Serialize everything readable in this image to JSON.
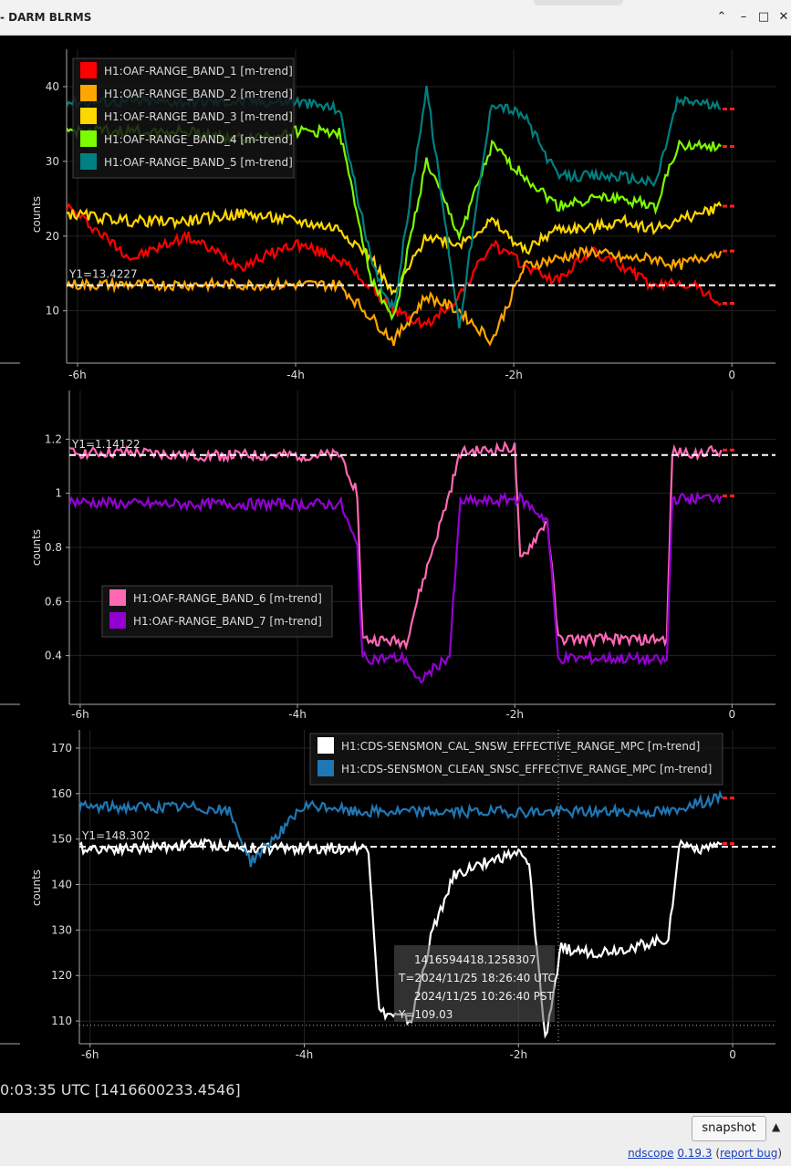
{
  "window": {
    "title": "- DARM BLRMS"
  },
  "x_ticks": [
    "-6h",
    "-4h",
    "-2h",
    "0"
  ],
  "panels": [
    {
      "ylabel": "counts",
      "yticks": [
        "40",
        "30",
        "20",
        "10"
      ],
      "cursor_label": "Y1=13.4227",
      "legend": [
        {
          "name": "H1:OAF-RANGE_BAND_1 [m-trend]",
          "color": "#ff0000"
        },
        {
          "name": "H1:OAF-RANGE_BAND_2 [m-trend]",
          "color": "#ffa500"
        },
        {
          "name": "H1:OAF-RANGE_BAND_3 [m-trend]",
          "color": "#ffd700"
        },
        {
          "name": "H1:OAF-RANGE_BAND_4 [m-trend]",
          "color": "#7cfc00"
        },
        {
          "name": "H1:OAF-RANGE_BAND_5 [m-trend]",
          "color": "#008080"
        }
      ]
    },
    {
      "ylabel": "counts",
      "yticks": [
        "1.2",
        "1",
        "0.8",
        "0.6",
        "0.4"
      ],
      "cursor_label": "Y1=1.14122",
      "legend": [
        {
          "name": "H1:OAF-RANGE_BAND_6 [m-trend]",
          "color": "#ff69b4"
        },
        {
          "name": "H1:OAF-RANGE_BAND_7 [m-trend]",
          "color": "#9400d3"
        }
      ]
    },
    {
      "ylabel": "counts",
      "yticks": [
        "170",
        "160",
        "150",
        "140",
        "130",
        "120",
        "110"
      ],
      "cursor_label": "Y1=148.302",
      "legend": [
        {
          "name": "H1:CDS-SENSMON_CAL_SNSW_EFFECTIVE_RANGE_MPC [m-trend]",
          "color": "#ffffff"
        },
        {
          "name": "H1:CDS-SENSMON_CLEAN_SNSC_EFFECTIVE_RANGE_MPC [m-trend]",
          "color": "#1f77b4"
        }
      ],
      "tooltip": [
        "1416594418.1258307",
        "T=2024/11/25 18:26:40 UTC",
        "2024/11/25 10:26:40 PST",
        "Y=109.03"
      ]
    }
  ],
  "chart_data": [
    {
      "type": "line",
      "x_unit": "hours before now",
      "xlim": [
        -6.1,
        0.4
      ],
      "ylim": [
        3,
        45
      ],
      "ylabel": "counts",
      "cursor_y1": 13.4227,
      "series": [
        {
          "name": "H1:OAF-RANGE_BAND_1 [m-trend]",
          "color": "#ff0000",
          "x": [
            -6.1,
            -5.5,
            -5.0,
            -4.5,
            -4.0,
            -3.6,
            -3.3,
            -3.1,
            -2.8,
            -2.5,
            -2.2,
            -1.9,
            -1.6,
            -1.3,
            -1.0,
            -0.7,
            -0.5,
            -0.3,
            -0.1
          ],
          "y": [
            24,
            17,
            20,
            16,
            19,
            17,
            13,
            10,
            8,
            12,
            19,
            16,
            14,
            18,
            16,
            13,
            14,
            13,
            11
          ]
        },
        {
          "name": "H1:OAF-RANGE_BAND_2 [m-trend]",
          "color": "#ffa500",
          "x": [
            -6.1,
            -5.5,
            -5.0,
            -4.5,
            -4.0,
            -3.6,
            -3.3,
            -3.1,
            -2.8,
            -2.5,
            -2.2,
            -1.9,
            -1.6,
            -1.3,
            -1.0,
            -0.7,
            -0.5,
            -0.3,
            -0.1
          ],
          "y": [
            13.5,
            13.5,
            13.5,
            13.5,
            13.5,
            13.5,
            9,
            6,
            12,
            10,
            6,
            16,
            17,
            18,
            17,
            17,
            16,
            17,
            18
          ]
        },
        {
          "name": "H1:OAF-RANGE_BAND_3 [m-trend]",
          "color": "#ffd700",
          "x": [
            -6.1,
            -5.5,
            -5.0,
            -4.5,
            -4.0,
            -3.6,
            -3.3,
            -3.1,
            -2.8,
            -2.5,
            -2.2,
            -1.9,
            -1.6,
            -1.3,
            -1.0,
            -0.7,
            -0.5,
            -0.3,
            -0.1
          ],
          "y": [
            23,
            22,
            22,
            23,
            22,
            21,
            17,
            12,
            20,
            19,
            22,
            18,
            21,
            21,
            22,
            21,
            22,
            23,
            24
          ]
        },
        {
          "name": "H1:OAF-RANGE_BAND_4 [m-trend]",
          "color": "#7cfc00",
          "x": [
            -6.1,
            -5.5,
            -5.0,
            -4.5,
            -4.0,
            -3.6,
            -3.3,
            -3.1,
            -2.8,
            -2.5,
            -2.2,
            -1.9,
            -1.6,
            -1.3,
            -1.0,
            -0.7,
            -0.5,
            -0.3,
            -0.1
          ],
          "y": [
            34,
            34,
            34,
            33,
            34,
            34,
            14,
            9,
            30,
            20,
            32,
            28,
            24,
            25,
            25,
            24,
            32,
            32,
            32
          ]
        },
        {
          "name": "H1:OAF-RANGE_BAND_5 [m-trend]",
          "color": "#008080",
          "x": [
            -6.1,
            -5.5,
            -5.0,
            -4.5,
            -4.0,
            -3.6,
            -3.3,
            -3.1,
            -2.8,
            -2.5,
            -2.2,
            -1.9,
            -1.6,
            -1.3,
            -1.0,
            -0.7,
            -0.5,
            -0.3,
            -0.1
          ],
          "y": [
            38,
            38,
            38,
            38,
            38,
            37,
            16,
            10,
            40,
            8,
            38,
            36,
            28,
            28,
            28,
            27,
            38,
            38,
            37
          ]
        }
      ]
    },
    {
      "type": "line",
      "x_unit": "hours before now",
      "xlim": [
        -6.1,
        0.4
      ],
      "ylim": [
        0.22,
        1.38
      ],
      "ylabel": "counts",
      "cursor_y1": 1.14122,
      "series": [
        {
          "name": "H1:OAF-RANGE_BAND_6 [m-trend]",
          "color": "#ff69b4",
          "x": [
            -6.1,
            -5.5,
            -5.0,
            -4.5,
            -4.0,
            -3.6,
            -3.45,
            -3.4,
            -3.0,
            -2.9,
            -2.6,
            -2.5,
            -2.2,
            -2.0,
            -1.95,
            -1.7,
            -1.6,
            -1.0,
            -0.6,
            -0.55,
            -0.3,
            -0.1
          ],
          "y": [
            1.15,
            1.15,
            1.14,
            1.14,
            1.14,
            1.14,
            1.0,
            0.46,
            0.45,
            0.6,
            1.0,
            1.15,
            1.16,
            1.17,
            0.75,
            0.9,
            0.46,
            0.46,
            0.46,
            1.15,
            1.15,
            1.16
          ]
        },
        {
          "name": "H1:OAF-RANGE_BAND_7 [m-trend]",
          "color": "#9400d3",
          "x": [
            -6.1,
            -5.5,
            -5.0,
            -4.5,
            -4.0,
            -3.6,
            -3.45,
            -3.4,
            -3.0,
            -2.9,
            -2.6,
            -2.5,
            -2.2,
            -2.0,
            -1.95,
            -1.7,
            -1.6,
            -1.0,
            -0.6,
            -0.55,
            -0.3,
            -0.1
          ],
          "y": [
            0.97,
            0.96,
            0.96,
            0.96,
            0.96,
            0.96,
            0.8,
            0.39,
            0.39,
            0.3,
            0.4,
            0.97,
            0.97,
            0.98,
            0.98,
            0.9,
            0.39,
            0.39,
            0.38,
            0.98,
            0.98,
            0.99
          ]
        }
      ]
    },
    {
      "type": "line",
      "x_unit": "hours before now",
      "xlim": [
        -6.1,
        0.4
      ],
      "ylim": [
        105,
        174
      ],
      "ylabel": "counts",
      "cursor_y1": 148.302,
      "cursor_y2": 109.03,
      "series": [
        {
          "name": "H1:CDS-SENSMON_CAL_SNSW_EFFECTIVE_RANGE_MPC [m-trend]",
          "color": "#ffffff",
          "x": [
            -6.1,
            -5.5,
            -5.0,
            -4.5,
            -4.0,
            -3.6,
            -3.4,
            -3.3,
            -3.0,
            -2.8,
            -2.6,
            -2.3,
            -2.0,
            -1.9,
            -1.75,
            -1.6,
            -1.3,
            -1.0,
            -0.6,
            -0.5,
            -0.3,
            -0.1
          ],
          "y": [
            148,
            148,
            149,
            148,
            148,
            148,
            148,
            112,
            110,
            130,
            142,
            145,
            147,
            144,
            106,
            126,
            125,
            126,
            128,
            149,
            148,
            149
          ]
        },
        {
          "name": "H1:CDS-SENSMON_CLEAN_SNSC_EFFECTIVE_RANGE_MPC [m-trend]",
          "color": "#1f77b4",
          "x": [
            -6.1,
            -5.5,
            -5.0,
            -4.7,
            -4.5,
            -4.0,
            -3.7,
            -3.6,
            -3.4,
            -0.5,
            -0.4,
            -0.3,
            -0.1
          ],
          "y": [
            157,
            157,
            157,
            156,
            145,
            157,
            157,
            156,
            156,
            156,
            158,
            158,
            159
          ]
        }
      ]
    }
  ],
  "status": {
    "text": "0:03:35 UTC [1416600233.4546]"
  },
  "controls": {
    "snapshot": "snapshot"
  },
  "footer": {
    "app": "ndscope",
    "version": "0.19.3",
    "report": "report bug"
  }
}
